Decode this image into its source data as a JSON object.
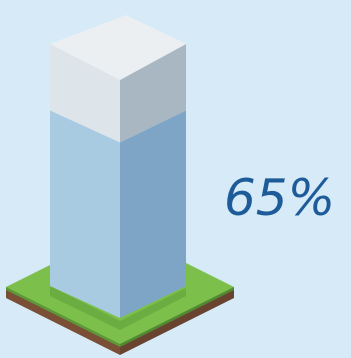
{
  "infographic": {
    "percent_label": "65%",
    "fill_fraction": 0.65
  },
  "colors": {
    "background": "#d6eaf8",
    "label": "#1d5b99",
    "fill_front": "#a9cbe2",
    "fill_side": "#7ea5c5",
    "empty_front": "#dde4ea",
    "empty_side": "#a9b7c2",
    "top_face": "#ebeff2",
    "grass_top": "#7cbf4b",
    "grass_edge": "#5a9a35",
    "soil": "#7a4f36"
  }
}
